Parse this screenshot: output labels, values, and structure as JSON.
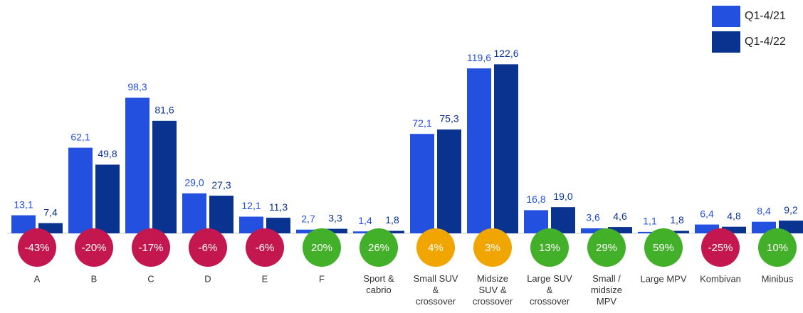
{
  "chart_data": {
    "type": "bar",
    "categories": [
      "A",
      "B",
      "C",
      "D",
      "E",
      "F",
      "Sport &\ncabrio",
      "Small SUV\n&\ncrossover",
      "Midsize\nSUV &\ncrossover",
      "Large SUV\n&\ncrossover",
      "Small /\nmidsize\nMPV",
      "Large MPV",
      "Kombivan",
      "Minibus"
    ],
    "series": [
      {
        "name": "Q1-4/21",
        "color": "#2450e0",
        "values": [
          13.1,
          62.1,
          98.3,
          29.0,
          12.1,
          2.7,
          1.4,
          72.1,
          119.6,
          16.8,
          3.6,
          1.1,
          6.4,
          8.4
        ],
        "value_labels": [
          "13,1",
          "62,1",
          "98,3",
          "29,0",
          "12,1",
          "2,7",
          "1,4",
          "72,1",
          "119,6",
          "16,8",
          "3,6",
          "1,1",
          "6,4",
          "8,4"
        ]
      },
      {
        "name": "Q1-4/22",
        "color": "#0a3390",
        "values": [
          7.4,
          49.8,
          81.6,
          27.3,
          11.3,
          3.3,
          1.8,
          75.3,
          122.6,
          19.0,
          4.6,
          1.8,
          4.8,
          9.2
        ],
        "value_labels": [
          "7,4",
          "49,8",
          "81,6",
          "27,3",
          "11,3",
          "3,3",
          "1,8",
          "75,3",
          "122,6",
          "19,0",
          "4,6",
          "1,8",
          "4,8",
          "9,2"
        ]
      }
    ],
    "changes": {
      "values": [
        -43,
        -20,
        -17,
        -6,
        -6,
        20,
        26,
        4,
        3,
        13,
        29,
        59,
        -25,
        10
      ],
      "value_labels": [
        "-43%",
        "-20%",
        "-17%",
        "-6%",
        "-6%",
        "20%",
        "26%",
        "4%",
        "3%",
        "13%",
        "29%",
        "59%",
        "-25%",
        "10%"
      ],
      "colors": [
        "#c4174f",
        "#c4174f",
        "#c4174f",
        "#c4174f",
        "#c4174f",
        "#43b02a",
        "#43b02a",
        "#f0a500",
        "#f0a500",
        "#43b02a",
        "#43b02a",
        "#43b02a",
        "#c4174f",
        "#43b02a"
      ]
    },
    "ylim": [
      0,
      130
    ],
    "legend": "top-right"
  }
}
